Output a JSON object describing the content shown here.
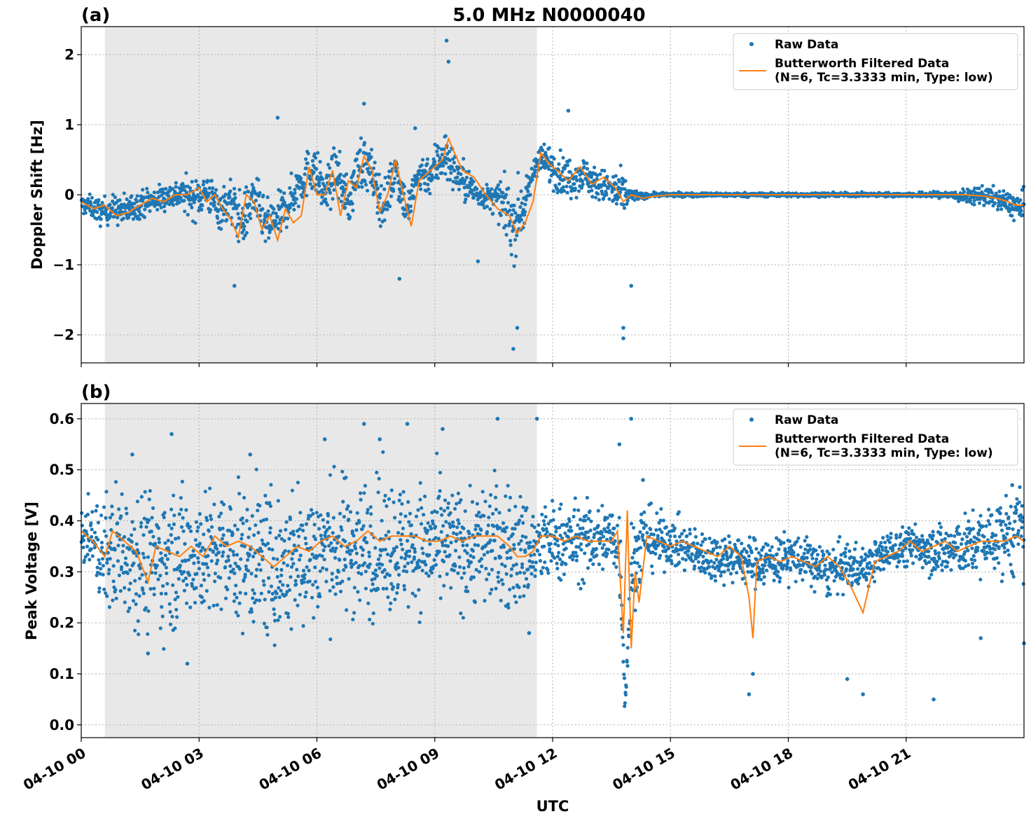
{
  "figure": {
    "title": "5.0 MHz N0000040",
    "xlabel": "UTC",
    "colors": {
      "raw": "#1f77b4",
      "filtered": "#ff7f0e",
      "shade": "#e8e8e8",
      "grid": "#b0b0b0"
    }
  },
  "chart_data": [
    {
      "type": "scatter",
      "panel_label": "(a)",
      "title": "5.0 MHz N0000040",
      "xlabel": "",
      "ylabel": "Doppler Shift [Hz]",
      "xlim_hours": [
        0,
        24
      ],
      "ylim": [
        -2.4,
        2.4
      ],
      "yticks": [
        2,
        1,
        0,
        -1,
        -2
      ],
      "ytick_labels": [
        "2",
        "1",
        "0",
        "−1",
        "−2"
      ],
      "grid": true,
      "legend_position": "top-right",
      "shaded_interval_hours": [
        0.6,
        11.6
      ],
      "series": [
        {
          "name": "Raw Data",
          "kind": "points",
          "color": "#1f77b4",
          "x_hours": [
            0.2,
            0.5,
            0.8,
            1.1,
            1.4,
            1.7,
            2.0,
            2.3,
            2.6,
            2.9,
            3.2,
            3.5,
            3.8,
            4.1,
            4.4,
            4.7,
            5.0,
            5.3,
            5.6,
            5.9,
            6.2,
            6.5,
            6.8,
            7.1,
            7.4,
            7.7,
            8.0,
            8.3,
            8.6,
            8.9,
            9.2,
            9.5,
            9.8,
            10.1,
            10.4,
            10.7,
            11.0,
            11.3,
            11.6,
            11.9,
            12.2,
            12.5,
            12.8,
            13.1,
            13.4,
            13.7,
            14.0,
            14.3,
            14.6,
            15.0,
            16.0,
            17.0,
            18.0,
            19.0,
            20.0,
            21.0,
            22.0,
            22.5,
            23.0,
            23.5,
            23.9
          ],
          "y_center": [
            -0.15,
            -0.25,
            -0.2,
            -0.25,
            -0.15,
            -0.1,
            -0.05,
            0.0,
            0.0,
            -0.05,
            0.05,
            -0.2,
            -0.1,
            -0.4,
            0.0,
            -0.45,
            -0.35,
            -0.1,
            0.2,
            0.4,
            0.0,
            0.35,
            -0.15,
            0.5,
            0.3,
            -0.2,
            0.4,
            -0.25,
            0.3,
            0.3,
            0.6,
            0.35,
            0.15,
            0.0,
            -0.05,
            -0.1,
            -0.4,
            -0.15,
            0.5,
            0.45,
            0.3,
            0.25,
            0.3,
            0.15,
            0.1,
            0.0,
            0.0,
            -0.02,
            0.0,
            0.0,
            0.0,
            0.0,
            0.0,
            0.0,
            0.0,
            0.0,
            0.0,
            -0.03,
            0.0,
            -0.1,
            -0.2
          ],
          "y_spread": [
            0.15,
            0.2,
            0.2,
            0.25,
            0.2,
            0.2,
            0.2,
            0.2,
            0.25,
            0.3,
            0.3,
            0.3,
            0.35,
            0.4,
            0.35,
            0.35,
            0.35,
            0.3,
            0.35,
            0.35,
            0.35,
            0.35,
            0.35,
            0.4,
            0.35,
            0.35,
            0.35,
            0.3,
            0.3,
            0.3,
            0.45,
            0.3,
            0.3,
            0.15,
            0.2,
            0.3,
            0.6,
            0.3,
            0.2,
            0.3,
            0.3,
            0.3,
            0.25,
            0.25,
            0.25,
            0.4,
            0.1,
            0.04,
            0.03,
            0.03,
            0.03,
            0.03,
            0.03,
            0.03,
            0.03,
            0.03,
            0.05,
            0.1,
            0.15,
            0.15,
            0.25
          ],
          "outliers": [
            [
              5.0,
              1.1
            ],
            [
              3.9,
              -1.3
            ],
            [
              7.2,
              1.3
            ],
            [
              8.1,
              -1.2
            ],
            [
              9.3,
              2.2
            ],
            [
              9.35,
              1.9
            ],
            [
              11.0,
              -2.2
            ],
            [
              11.1,
              -1.9
            ],
            [
              12.4,
              1.2
            ],
            [
              13.8,
              -1.9
            ],
            [
              13.8,
              -2.05
            ],
            [
              14.0,
              -1.3
            ],
            [
              10.1,
              -0.95
            ],
            [
              8.5,
              0.95
            ]
          ]
        },
        {
          "name": "Butterworth Filtered Data\n(N=6, Tc=3.3333 min, Type: low)",
          "kind": "line",
          "color": "#ff7f0e",
          "x_hours": [
            0.0,
            0.3,
            0.6,
            0.9,
            1.2,
            1.5,
            1.8,
            2.1,
            2.4,
            2.7,
            3.0,
            3.2,
            3.4,
            3.6,
            3.8,
            4.0,
            4.2,
            4.4,
            4.6,
            4.8,
            5.0,
            5.2,
            5.4,
            5.6,
            5.8,
            6.0,
            6.2,
            6.4,
            6.6,
            6.8,
            7.0,
            7.2,
            7.4,
            7.6,
            7.8,
            8.0,
            8.2,
            8.4,
            8.6,
            8.8,
            9.0,
            9.2,
            9.35,
            9.5,
            9.7,
            10.0,
            10.3,
            10.6,
            10.9,
            11.1,
            11.3,
            11.5,
            11.7,
            11.9,
            12.1,
            12.4,
            12.7,
            13.0,
            13.3,
            13.6,
            13.8,
            14.0,
            14.3,
            14.6,
            15.0,
            16.0,
            17.0,
            18.0,
            19.0,
            20.0,
            21.0,
            22.0,
            22.5,
            23.0,
            23.3,
            23.6,
            23.8,
            24.0
          ],
          "y": [
            -0.1,
            -0.2,
            -0.15,
            -0.3,
            -0.25,
            -0.15,
            -0.05,
            -0.1,
            0.0,
            0.0,
            0.1,
            -0.1,
            0.0,
            -0.2,
            -0.35,
            -0.6,
            0.0,
            -0.1,
            -0.5,
            -0.3,
            -0.65,
            -0.2,
            -0.4,
            -0.3,
            0.4,
            0.0,
            0.0,
            0.35,
            -0.3,
            0.2,
            0.1,
            0.55,
            0.35,
            -0.25,
            0.0,
            0.5,
            0.0,
            -0.45,
            0.2,
            0.3,
            0.4,
            0.5,
            0.8,
            0.6,
            0.35,
            0.25,
            0.0,
            -0.2,
            -0.3,
            -0.55,
            -0.4,
            -0.1,
            0.6,
            0.45,
            0.35,
            0.2,
            0.4,
            0.15,
            0.25,
            0.1,
            -0.1,
            0.0,
            -0.05,
            -0.02,
            0.0,
            0.0,
            0.0,
            0.0,
            0.0,
            0.0,
            0.0,
            0.0,
            0.0,
            -0.02,
            -0.05,
            -0.1,
            -0.15,
            -0.15
          ]
        }
      ]
    },
    {
      "type": "scatter",
      "panel_label": "(b)",
      "xlabel": "UTC",
      "ylabel": "Peak Voltage [V]",
      "xlim_hours": [
        0,
        24
      ],
      "ylim": [
        -0.025,
        0.63
      ],
      "yticks": [
        0.0,
        0.1,
        0.2,
        0.3,
        0.4,
        0.5,
        0.6
      ],
      "ytick_labels": [
        "0.0",
        "0.1",
        "0.2",
        "0.3",
        "0.4",
        "0.5",
        "0.6"
      ],
      "xticks_hours": [
        0,
        3,
        6,
        9,
        12,
        15,
        18,
        21
      ],
      "xtick_labels": [
        "04-10 00",
        "04-10 03",
        "04-10 06",
        "04-10 09",
        "04-10 12",
        "04-10 15",
        "04-10 18",
        "04-10 21"
      ],
      "grid": true,
      "legend_position": "top-right",
      "shaded_interval_hours": [
        0.6,
        11.6
      ],
      "series": [
        {
          "name": "Raw Data",
          "kind": "points",
          "color": "#1f77b4",
          "x_hours": [
            0.2,
            0.6,
            1.0,
            1.5,
            2.0,
            2.5,
            3.0,
            3.5,
            4.0,
            4.5,
            5.0,
            5.5,
            6.0,
            6.5,
            7.0,
            7.5,
            8.0,
            8.5,
            9.0,
            9.5,
            10.0,
            10.5,
            11.0,
            11.5,
            12.0,
            12.5,
            13.0,
            13.5,
            13.7,
            13.85,
            14.0,
            14.3,
            14.6,
            15.0,
            15.5,
            16.0,
            16.5,
            17.0,
            17.5,
            18.0,
            18.5,
            19.0,
            19.5,
            20.0,
            20.5,
            21.0,
            21.5,
            22.0,
            22.5,
            23.0,
            23.5,
            23.9
          ],
          "y_center": [
            0.37,
            0.33,
            0.35,
            0.33,
            0.32,
            0.33,
            0.34,
            0.33,
            0.33,
            0.33,
            0.3,
            0.33,
            0.34,
            0.35,
            0.35,
            0.35,
            0.35,
            0.35,
            0.35,
            0.35,
            0.35,
            0.36,
            0.34,
            0.34,
            0.36,
            0.36,
            0.36,
            0.37,
            0.35,
            0.05,
            0.3,
            0.37,
            0.36,
            0.36,
            0.34,
            0.33,
            0.33,
            0.32,
            0.32,
            0.33,
            0.32,
            0.3,
            0.31,
            0.31,
            0.34,
            0.35,
            0.35,
            0.34,
            0.35,
            0.36,
            0.37,
            0.38
          ],
          "y_spread": [
            0.06,
            0.12,
            0.14,
            0.14,
            0.14,
            0.14,
            0.13,
            0.13,
            0.14,
            0.15,
            0.15,
            0.15,
            0.14,
            0.14,
            0.14,
            0.14,
            0.13,
            0.13,
            0.13,
            0.12,
            0.12,
            0.13,
            0.13,
            0.1,
            0.08,
            0.08,
            0.08,
            0.07,
            0.1,
            0.04,
            0.1,
            0.07,
            0.06,
            0.05,
            0.05,
            0.05,
            0.05,
            0.05,
            0.05,
            0.05,
            0.05,
            0.05,
            0.05,
            0.04,
            0.04,
            0.04,
            0.05,
            0.06,
            0.06,
            0.07,
            0.08,
            0.09
          ],
          "outliers": [
            [
              1.3,
              0.53
            ],
            [
              1.7,
              0.14
            ],
            [
              2.3,
              0.57
            ],
            [
              2.7,
              0.12
            ],
            [
              4.3,
              0.53
            ],
            [
              6.2,
              0.56
            ],
            [
              7.2,
              0.59
            ],
            [
              7.6,
              0.56
            ],
            [
              8.3,
              0.59
            ],
            [
              9.2,
              0.58
            ],
            [
              10.6,
              0.6
            ],
            [
              11.6,
              0.6
            ],
            [
              11.4,
              0.18
            ],
            [
              13.7,
              0.55
            ],
            [
              14.0,
              0.6
            ],
            [
              14.3,
              0.48
            ],
            [
              17.0,
              0.06
            ],
            [
              17.1,
              0.1
            ],
            [
              19.5,
              0.09
            ],
            [
              19.9,
              0.06
            ],
            [
              21.7,
              0.05
            ],
            [
              22.9,
              0.17
            ],
            [
              24.0,
              0.16
            ],
            [
              23.7,
              0.47
            ]
          ]
        },
        {
          "name": "Butterworth Filtered Data\n(N=6, Tc=3.3333 min, Type: low)",
          "kind": "line",
          "color": "#ff7f0e",
          "x_hours": [
            0.0,
            0.3,
            0.6,
            0.8,
            1.1,
            1.4,
            1.7,
            1.9,
            2.2,
            2.5,
            2.8,
            3.1,
            3.4,
            3.7,
            4.0,
            4.3,
            4.6,
            4.9,
            5.2,
            5.5,
            5.8,
            6.1,
            6.4,
            6.7,
            7.0,
            7.3,
            7.6,
            7.9,
            8.2,
            8.5,
            8.8,
            9.1,
            9.4,
            9.7,
            10.0,
            10.3,
            10.6,
            10.9,
            11.1,
            11.3,
            11.5,
            11.7,
            12.0,
            12.3,
            12.6,
            12.9,
            13.2,
            13.5,
            13.65,
            13.8,
            13.9,
            14.0,
            14.1,
            14.2,
            14.4,
            14.7,
            15.0,
            15.3,
            15.6,
            15.9,
            16.2,
            16.5,
            16.8,
            17.0,
            17.1,
            17.2,
            17.5,
            17.8,
            18.1,
            18.4,
            18.7,
            19.0,
            19.3,
            19.6,
            19.9,
            20.2,
            20.5,
            20.8,
            21.1,
            21.4,
            21.7,
            22.0,
            22.3,
            22.6,
            22.9,
            23.2,
            23.5,
            23.8,
            24.0
          ],
          "y": [
            0.38,
            0.36,
            0.33,
            0.38,
            0.36,
            0.34,
            0.28,
            0.35,
            0.34,
            0.33,
            0.35,
            0.33,
            0.37,
            0.35,
            0.36,
            0.35,
            0.33,
            0.31,
            0.33,
            0.35,
            0.34,
            0.36,
            0.37,
            0.35,
            0.36,
            0.38,
            0.36,
            0.37,
            0.37,
            0.37,
            0.36,
            0.36,
            0.37,
            0.36,
            0.37,
            0.37,
            0.37,
            0.35,
            0.33,
            0.33,
            0.34,
            0.37,
            0.37,
            0.36,
            0.37,
            0.36,
            0.36,
            0.36,
            0.38,
            0.18,
            0.42,
            0.15,
            0.3,
            0.24,
            0.37,
            0.36,
            0.35,
            0.36,
            0.35,
            0.34,
            0.33,
            0.35,
            0.33,
            0.25,
            0.17,
            0.32,
            0.33,
            0.32,
            0.33,
            0.32,
            0.31,
            0.33,
            0.31,
            0.27,
            0.22,
            0.32,
            0.33,
            0.34,
            0.36,
            0.34,
            0.35,
            0.36,
            0.34,
            0.35,
            0.36,
            0.36,
            0.36,
            0.37,
            0.36
          ]
        }
      ]
    }
  ]
}
